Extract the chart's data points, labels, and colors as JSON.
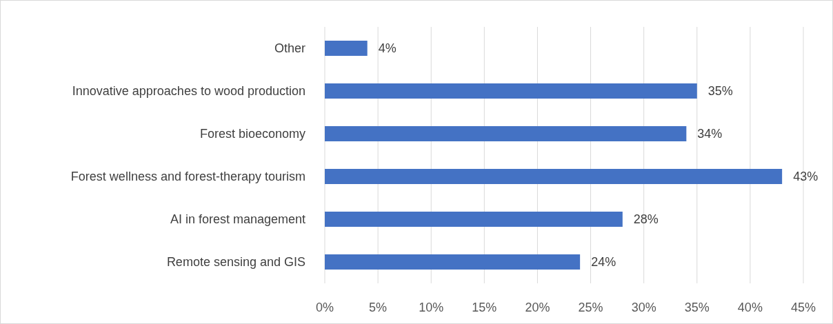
{
  "chart_data": {
    "type": "bar",
    "orientation": "horizontal",
    "categories": [
      "Other",
      "Innovative approaches to wood production",
      "Forest bioeconomy",
      "Forest wellness and forest-therapy tourism",
      "AI in forest management",
      "Remote sensing and GIS"
    ],
    "values": [
      4,
      35,
      34,
      43,
      28,
      24
    ],
    "value_labels": [
      "4%",
      "35%",
      "34%",
      "43%",
      "28%",
      "24%"
    ],
    "color": "#4472c4",
    "xlim": [
      0,
      45
    ],
    "xticks": [
      {
        "value": 0,
        "label": "0%"
      },
      {
        "value": 5,
        "label": "5%"
      },
      {
        "value": 10,
        "label": "10%"
      },
      {
        "value": 15,
        "label": "15%"
      },
      {
        "value": 20,
        "label": "20%"
      },
      {
        "value": 25,
        "label": "25%"
      },
      {
        "value": 30,
        "label": "30%"
      },
      {
        "value": 35,
        "label": "35%"
      },
      {
        "value": 40,
        "label": "40%"
      },
      {
        "value": 45,
        "label": "45%"
      }
    ],
    "grid": "x",
    "legend": false
  }
}
